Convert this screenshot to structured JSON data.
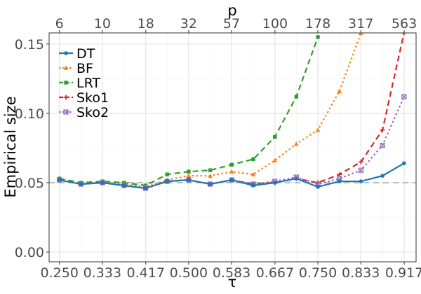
{
  "chart_data": {
    "type": "line",
    "xlabel": "τ",
    "ylabel": "Empirical size",
    "top_axis_label": "p",
    "x_ticks": [
      0.25,
      0.333,
      0.417,
      0.5,
      0.583,
      0.667,
      0.75,
      0.833,
      0.917
    ],
    "x_tick_labels": [
      "0.250",
      "0.333",
      "0.417",
      "0.500",
      "0.583",
      "0.667",
      "0.750",
      "0.833",
      "0.917"
    ],
    "top_ticks": [
      0.25,
      0.333,
      0.417,
      0.5,
      0.583,
      0.667,
      0.75,
      0.833,
      0.917
    ],
    "top_tick_labels": [
      "6",
      "10",
      "18",
      "32",
      "57",
      "100",
      "178",
      "317",
      "563"
    ],
    "y_ticks": [
      0.0,
      0.05,
      0.1,
      0.15
    ],
    "y_tick_labels": [
      "0.00",
      "0.05",
      "0.10",
      "0.15"
    ],
    "xlim": [
      0.23,
      0.94
    ],
    "ylim": [
      -0.007,
      0.158
    ],
    "reference_line": 0.05,
    "grid": true,
    "legend_position": "top-left",
    "x": [
      0.25,
      0.2917,
      0.3333,
      0.375,
      0.4167,
      0.4583,
      0.5,
      0.5417,
      0.5833,
      0.625,
      0.6667,
      0.7083,
      0.75,
      0.7917,
      0.8333,
      0.875,
      0.9167
    ],
    "series": [
      {
        "name": "DT",
        "color": "#1f77b4",
        "dash": "solid",
        "marker": "circle",
        "values": [
          0.052,
          0.049,
          0.05,
          0.048,
          0.046,
          0.051,
          0.052,
          0.049,
          0.052,
          0.048,
          0.05,
          0.053,
          0.047,
          0.051,
          0.051,
          0.055,
          0.064
        ]
      },
      {
        "name": "BF",
        "color": "#ff7f0e",
        "dash": "dotted",
        "marker": "triangle",
        "values": [
          0.052,
          0.049,
          0.05,
          0.049,
          0.047,
          0.052,
          0.055,
          0.055,
          0.058,
          0.056,
          0.066,
          0.078,
          0.088,
          0.116,
          0.158,
          null,
          null
        ]
      },
      {
        "name": "LRT",
        "color": "#2ca02c",
        "dash": "dashed",
        "marker": "square",
        "values": [
          0.053,
          0.05,
          0.051,
          0.05,
          0.048,
          0.056,
          0.058,
          0.059,
          0.063,
          0.067,
          0.083,
          0.112,
          0.155,
          null,
          null,
          null,
          null
        ]
      },
      {
        "name": "Sko1",
        "color": "#d62728",
        "dash": "dashed",
        "marker": "plus",
        "values": [
          0.052,
          0.049,
          0.05,
          0.048,
          0.046,
          0.051,
          0.052,
          0.049,
          0.052,
          0.049,
          0.05,
          0.053,
          0.05,
          0.056,
          0.065,
          0.088,
          0.158
        ]
      },
      {
        "name": "Sko2",
        "color": "#9467bd",
        "dash": "dotted",
        "marker": "boxcross",
        "values": [
          0.052,
          0.049,
          0.05,
          0.048,
          0.046,
          0.051,
          0.052,
          0.049,
          0.052,
          0.049,
          0.051,
          0.054,
          0.049,
          0.053,
          0.059,
          0.077,
          0.112
        ]
      }
    ]
  }
}
